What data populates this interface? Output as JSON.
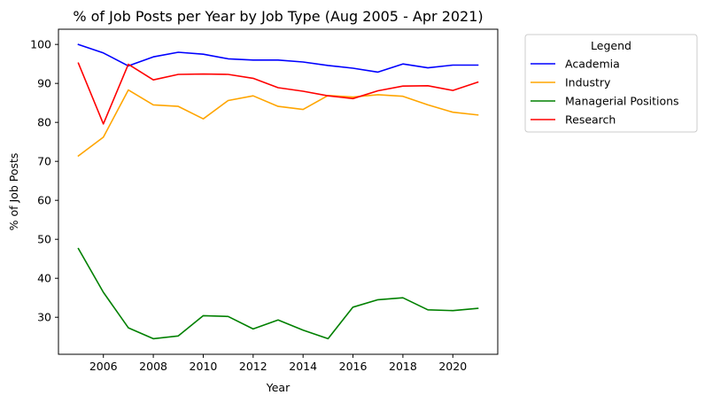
{
  "chart_data": {
    "type": "line",
    "title": "% of Job Posts per Year by Job Type (Aug 2005 - Apr 2021)",
    "xlabel": "Year",
    "ylabel": "% of Job Posts",
    "x": [
      2005,
      2006,
      2007,
      2008,
      2009,
      2010,
      2011,
      2012,
      2013,
      2014,
      2015,
      2016,
      2017,
      2018,
      2019,
      2020,
      2021
    ],
    "x_ticks": [
      2006,
      2008,
      2010,
      2012,
      2014,
      2016,
      2018,
      2020
    ],
    "y_ticks": [
      30,
      40,
      50,
      60,
      70,
      80,
      90,
      100
    ],
    "xlim": [
      2004.2,
      2021.8
    ],
    "ylim": [
      20.5,
      103.9
    ],
    "grid": false,
    "legend": {
      "title": "Legend",
      "placement": "outside-upper-right"
    },
    "series": [
      {
        "name": "Academia",
        "color": "#0000ff",
        "values": [
          100.0,
          97.8,
          94.5,
          96.8,
          98.0,
          97.5,
          96.3,
          96.0,
          96.0,
          95.5,
          94.6,
          93.9,
          92.9,
          95.0,
          94.0,
          94.7,
          94.7
        ]
      },
      {
        "name": "Industry",
        "color": "#ffa500",
        "values": [
          71.4,
          76.2,
          88.3,
          84.5,
          84.1,
          80.9,
          85.6,
          86.8,
          84.1,
          83.3,
          86.9,
          86.5,
          87.1,
          86.7,
          84.5,
          82.6,
          81.9
        ]
      },
      {
        "name": "Managerial Positions",
        "color": "#008000",
        "values": [
          47.6,
          36.4,
          27.3,
          24.5,
          25.2,
          30.4,
          30.2,
          27.0,
          29.3,
          26.7,
          24.5,
          32.6,
          34.5,
          35.0,
          31.9,
          31.7,
          32.3
        ]
      },
      {
        "name": "Research",
        "color": "#ff0000",
        "values": [
          95.2,
          79.6,
          94.9,
          90.9,
          92.3,
          92.4,
          92.3,
          91.3,
          88.9,
          88.0,
          86.8,
          86.1,
          88.1,
          89.3,
          89.4,
          88.2,
          90.3
        ]
      }
    ]
  }
}
